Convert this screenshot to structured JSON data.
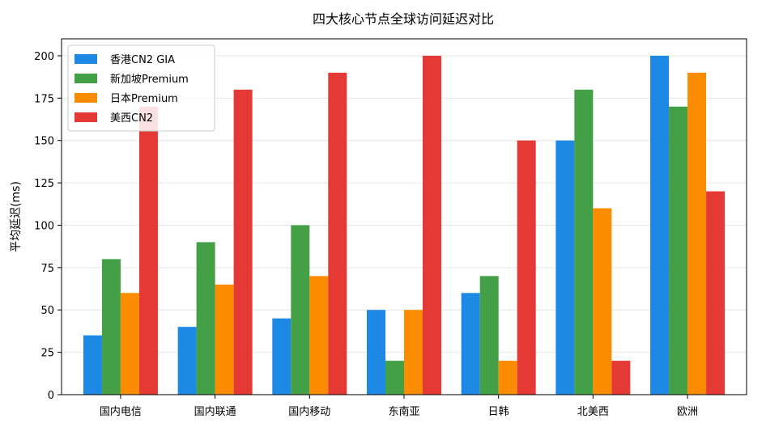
{
  "chart_data": {
    "type": "bar",
    "title": "四大核心节点全球访问延迟对比",
    "xlabel": "",
    "ylabel": "平均延迟(ms)",
    "categories": [
      "国内电信",
      "国内联通",
      "国内移动",
      "东南亚",
      "日韩",
      "北美西",
      "欧洲"
    ],
    "series": [
      {
        "name": "香港CN2 GIA",
        "color": "#1e88e5",
        "values": [
          35,
          40,
          45,
          50,
          60,
          150,
          200
        ]
      },
      {
        "name": "新加坡Premium",
        "color": "#43a047",
        "values": [
          80,
          90,
          100,
          20,
          70,
          180,
          170
        ]
      },
      {
        "name": "日本Premium",
        "color": "#fb8c00",
        "values": [
          60,
          65,
          70,
          50,
          20,
          110,
          190
        ]
      },
      {
        "name": "美西CN2",
        "color": "#e53935",
        "values": [
          170,
          180,
          190,
          200,
          150,
          20,
          120
        ]
      }
    ],
    "ylim": [
      0,
      210
    ],
    "yticks": [
      0,
      25,
      50,
      75,
      100,
      125,
      150,
      175,
      200
    ],
    "grid": "horizontal",
    "legend": "top-left"
  }
}
